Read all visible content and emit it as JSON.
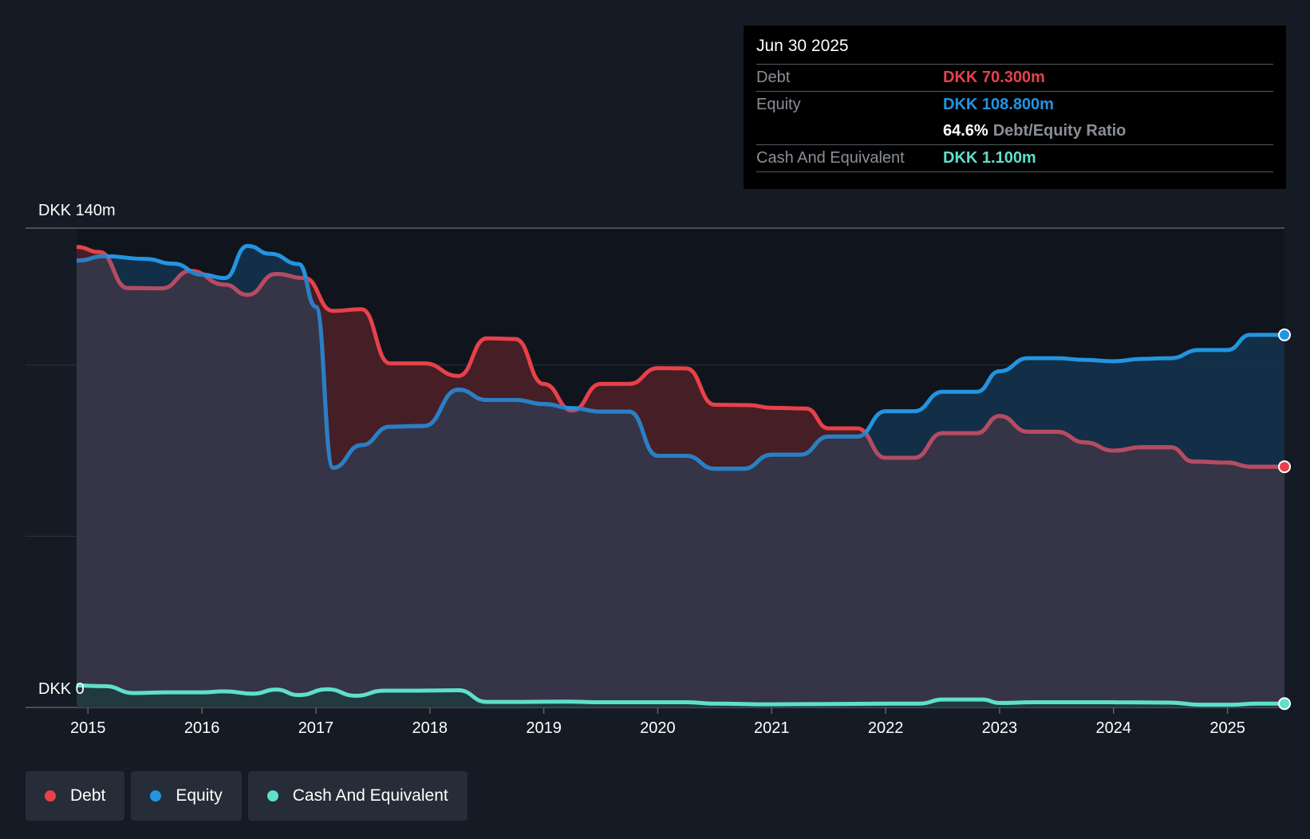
{
  "tooltip": {
    "date": "Jun 30 2025",
    "debt_label": "Debt",
    "debt_value": "DKK 70.300m",
    "equity_label": "Equity",
    "equity_value": "DKK 108.800m",
    "ratio_value": "64.6%",
    "ratio_label": "Debt/Equity Ratio",
    "cash_label": "Cash And Equivalent",
    "cash_value": "DKK 1.100m"
  },
  "legend": {
    "debt": "Debt",
    "equity": "Equity",
    "cash": "Cash And Equivalent"
  },
  "colors": {
    "debt": "#e8414a",
    "equity": "#2394e1",
    "cash": "#5ee0cb",
    "background": "#151b24"
  },
  "chart_data": {
    "type": "area",
    "title": "",
    "y_top_label": "DKK 140m",
    "y_bottom_label": "DKK 0",
    "ylim": [
      0,
      140
    ],
    "xlim": [
      2014.9,
      2025.5
    ],
    "x_ticks": [
      "2015",
      "2016",
      "2017",
      "2018",
      "2019",
      "2020",
      "2021",
      "2022",
      "2023",
      "2024",
      "2025"
    ],
    "gridlines": [
      0,
      50,
      100,
      140
    ],
    "series": [
      {
        "name": "Debt",
        "points": [
          [
            2014.9,
            134.5
          ],
          [
            2015.1,
            133
          ],
          [
            2015.35,
            122.5
          ],
          [
            2015.65,
            122.4
          ],
          [
            2015.9,
            127.5
          ],
          [
            2016.2,
            123.5
          ],
          [
            2016.4,
            120.5
          ],
          [
            2016.65,
            126.6
          ],
          [
            2016.9,
            125.4
          ],
          [
            2017.15,
            115.8
          ],
          [
            2017.4,
            116.3
          ],
          [
            2017.65,
            100.5
          ],
          [
            2017.95,
            100.5
          ],
          [
            2018.25,
            96.8
          ],
          [
            2018.5,
            107.8
          ],
          [
            2018.75,
            107.6
          ],
          [
            2019.0,
            94.5
          ],
          [
            2019.25,
            86.7
          ],
          [
            2019.5,
            94.5
          ],
          [
            2019.75,
            94.5
          ],
          [
            2020.0,
            99.1
          ],
          [
            2020.25,
            99.0
          ],
          [
            2020.5,
            88.4
          ],
          [
            2020.8,
            88.3
          ],
          [
            2021.0,
            87.5
          ],
          [
            2021.3,
            87.3
          ],
          [
            2021.5,
            81.5
          ],
          [
            2021.75,
            81.5
          ],
          [
            2022.0,
            72.9
          ],
          [
            2022.25,
            72.9
          ],
          [
            2022.5,
            80.1
          ],
          [
            2022.8,
            80.1
          ],
          [
            2023.0,
            85.1
          ],
          [
            2023.25,
            80.5
          ],
          [
            2023.5,
            80.5
          ],
          [
            2023.75,
            77.4
          ],
          [
            2024.0,
            75.0
          ],
          [
            2024.25,
            76.0
          ],
          [
            2024.5,
            76.0
          ],
          [
            2024.7,
            71.8
          ],
          [
            2025.0,
            71.5
          ],
          [
            2025.2,
            70.3
          ],
          [
            2025.5,
            70.3
          ]
        ]
      },
      {
        "name": "Equity",
        "points": [
          [
            2014.9,
            130.5
          ],
          [
            2015.15,
            131.8
          ],
          [
            2015.5,
            131.0
          ],
          [
            2015.75,
            129.6
          ],
          [
            2016.0,
            126.4
          ],
          [
            2016.2,
            125.4
          ],
          [
            2016.4,
            134.8
          ],
          [
            2016.6,
            132.5
          ],
          [
            2016.85,
            129.5
          ],
          [
            2017.0,
            117.0
          ],
          [
            2017.15,
            70.0
          ],
          [
            2017.4,
            76.6
          ],
          [
            2017.65,
            82.0
          ],
          [
            2017.95,
            82.2
          ],
          [
            2018.25,
            92.8
          ],
          [
            2018.5,
            89.8
          ],
          [
            2018.75,
            89.8
          ],
          [
            2019.0,
            88.6
          ],
          [
            2019.25,
            87.4
          ],
          [
            2019.5,
            86.4
          ],
          [
            2019.75,
            86.4
          ],
          [
            2020.0,
            73.5
          ],
          [
            2020.25,
            73.5
          ],
          [
            2020.5,
            69.7
          ],
          [
            2020.75,
            69.7
          ],
          [
            2021.0,
            73.8
          ],
          [
            2021.25,
            73.8
          ],
          [
            2021.5,
            79.1
          ],
          [
            2021.75,
            79.1
          ],
          [
            2022.0,
            86.5
          ],
          [
            2022.25,
            86.5
          ],
          [
            2022.5,
            92.2
          ],
          [
            2022.8,
            92.2
          ],
          [
            2023.0,
            98.2
          ],
          [
            2023.25,
            102.0
          ],
          [
            2023.5,
            102.0
          ],
          [
            2023.75,
            101.5
          ],
          [
            2024.0,
            101.1
          ],
          [
            2024.25,
            101.8
          ],
          [
            2024.5,
            102.0
          ],
          [
            2024.75,
            104.4
          ],
          [
            2025.0,
            104.4
          ],
          [
            2025.2,
            108.8
          ],
          [
            2025.5,
            108.8
          ]
        ]
      },
      {
        "name": "Cash And Equivalent",
        "points": [
          [
            2014.9,
            6.4
          ],
          [
            2015.15,
            6.2
          ],
          [
            2015.4,
            4.2
          ],
          [
            2015.7,
            4.4
          ],
          [
            2016.0,
            4.4
          ],
          [
            2016.2,
            4.7
          ],
          [
            2016.45,
            4.0
          ],
          [
            2016.65,
            5.2
          ],
          [
            2016.85,
            3.6
          ],
          [
            2017.1,
            5.3
          ],
          [
            2017.35,
            3.4
          ],
          [
            2017.6,
            4.9
          ],
          [
            2017.9,
            4.9
          ],
          [
            2018.25,
            5.0
          ],
          [
            2018.5,
            1.6
          ],
          [
            2018.8,
            1.6
          ],
          [
            2019.2,
            1.7
          ],
          [
            2019.5,
            1.5
          ],
          [
            2019.8,
            1.5
          ],
          [
            2020.25,
            1.5
          ],
          [
            2020.5,
            1.1
          ],
          [
            2021.0,
            0.9
          ],
          [
            2021.5,
            1.0
          ],
          [
            2022.0,
            1.1
          ],
          [
            2022.3,
            1.1
          ],
          [
            2022.5,
            2.3
          ],
          [
            2022.85,
            2.3
          ],
          [
            2023.0,
            1.3
          ],
          [
            2023.3,
            1.5
          ],
          [
            2023.75,
            1.5
          ],
          [
            2024.0,
            1.5
          ],
          [
            2024.5,
            1.4
          ],
          [
            2024.75,
            0.8
          ],
          [
            2025.05,
            0.8
          ],
          [
            2025.25,
            1.1
          ],
          [
            2025.5,
            1.1
          ]
        ]
      }
    ]
  }
}
